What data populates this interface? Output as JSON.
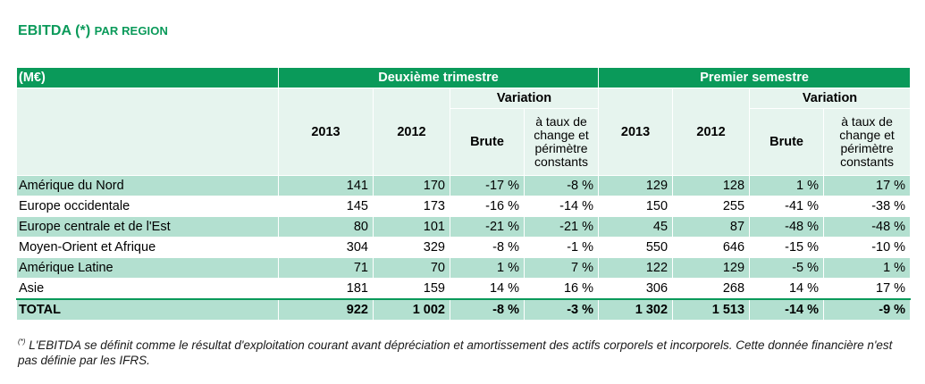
{
  "title": {
    "main": "EBITDA (*)",
    "suffix": "PAR REGION"
  },
  "table": {
    "unit": "(M€)",
    "group1": "Deuxième trimestre",
    "group2": "Premier semestre",
    "col_2013": "2013",
    "col_2012": "2012",
    "variation": "Variation",
    "brute": "Brute",
    "constant": "à taux de change et périmètre constants",
    "rows": [
      {
        "name": "Amérique du Nord",
        "values": [
          "141",
          "170",
          "-17 %",
          "-8 %",
          "129",
          "128",
          "1 %",
          "17 %"
        ]
      },
      {
        "name": "Europe occidentale",
        "values": [
          "145",
          "173",
          "-16 %",
          "-14 %",
          "150",
          "255",
          "-41 %",
          "-38 %"
        ]
      },
      {
        "name": "Europe centrale et de l'Est",
        "values": [
          "80",
          "101",
          "-21 %",
          "-21 %",
          "45",
          "87",
          "-48 %",
          "-48 %"
        ]
      },
      {
        "name": "Moyen-Orient et Afrique",
        "values": [
          "304",
          "329",
          "-8 %",
          "-1 %",
          "550",
          "646",
          "-15 %",
          "-10 %"
        ]
      },
      {
        "name": "Amérique Latine",
        "values": [
          "71",
          "70",
          "1 %",
          "7 %",
          "122",
          "129",
          "-5 %",
          "1 %"
        ]
      },
      {
        "name": "Asie",
        "values": [
          "181",
          "159",
          "14 %",
          "16 %",
          "306",
          "268",
          "14 %",
          "17 %"
        ]
      }
    ],
    "total": {
      "name": "TOTAL",
      "values": [
        "922",
        "1 002",
        "-8 %",
        "-3 %",
        "1 302",
        "1 513",
        "-14 %",
        "-9 %"
      ]
    }
  },
  "footnote": {
    "mark": "(*)",
    "text": " L'EBITDA se définit comme le résultat d'exploitation courant avant dépréciation et amortissement des actifs corporels et incorporels. Cette donnée financière n'est pas définie par les IFRS."
  }
}
